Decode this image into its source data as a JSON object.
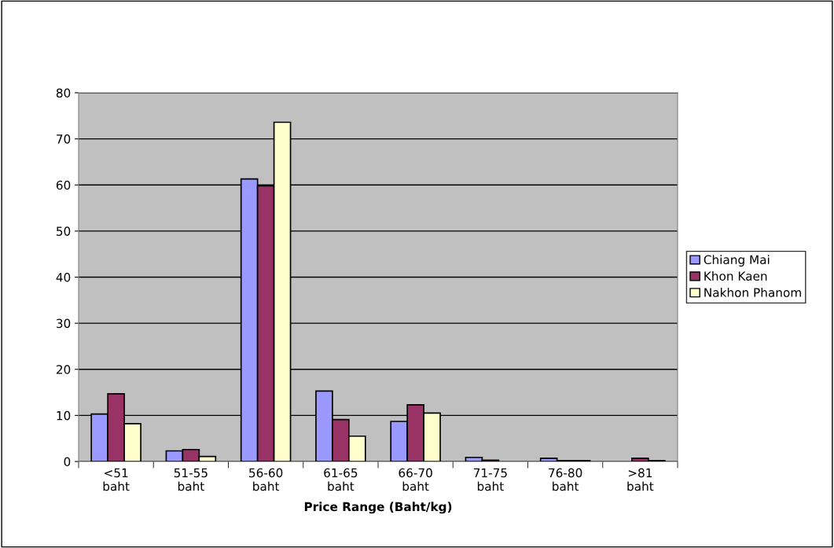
{
  "chart_data": {
    "type": "bar",
    "xlabel": "Price Range (Baht/kg)",
    "categories": [
      "<51\nbaht",
      "51-55\nbaht",
      "56-60\nbaht",
      "61-65\nbaht",
      "66-70\nbaht",
      "71-75\nbaht",
      "76-80\nbaht",
      ">81\nbaht"
    ],
    "series": [
      {
        "name": "Chiang Mai",
        "color": "#9999ff",
        "values": [
          10.3,
          2.3,
          61.3,
          15.3,
          8.7,
          0.9,
          0.7,
          null
        ]
      },
      {
        "name": "Khon Kaen",
        "color": "#993366",
        "values": [
          14.7,
          2.6,
          59.8,
          9.1,
          12.3,
          0.3,
          0.2,
          0.7
        ]
      },
      {
        "name": "Nakhon Phanom",
        "color": "#ffffcc",
        "values": [
          8.2,
          1.1,
          73.6,
          5.5,
          10.5,
          0,
          0.2,
          0.2
        ]
      }
    ],
    "ylim": [
      0,
      80
    ],
    "yticks": [
      0,
      10,
      20,
      30,
      40,
      50,
      60,
      70,
      80
    ],
    "grid": "y",
    "legend": "right"
  }
}
